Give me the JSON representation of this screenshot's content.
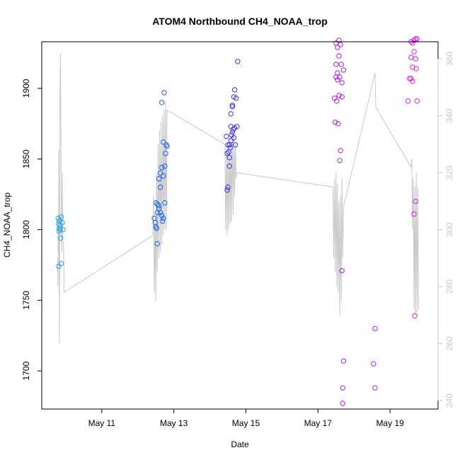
{
  "chart_data": {
    "type": "scatter",
    "title": "ATOM4 Northbound CH4_NOAA_trop",
    "xlabel": "Date",
    "ylabel": "CH4_NOAA_trop",
    "xlim": [
      "2018-05-09T08:00",
      "2018-05-20T08:00"
    ],
    "ylim": [
      1673,
      1933
    ],
    "x_ticks": [
      {
        "value": "2018-05-11",
        "label": "May 11"
      },
      {
        "value": "2018-05-13",
        "label": "May 13"
      },
      {
        "value": "2018-05-15",
        "label": "May 15"
      },
      {
        "value": "2018-05-17",
        "label": "May 17"
      },
      {
        "value": "2018-05-19",
        "label": "May 19"
      }
    ],
    "y_ticks": [
      1700,
      1750,
      1800,
      1850,
      1900
    ],
    "y2_ticks": [
      240,
      260,
      280,
      300,
      320,
      340,
      360
    ],
    "y2_lim": [
      237,
      366
    ],
    "grid": false,
    "colors": {
      "flight1": "#29a3e0",
      "flight2": "#1e62f0",
      "flight3": "#3a30e8",
      "flight4": "#b020e0",
      "flight5": "#e020e0",
      "altitude_line": "#c8c8c8",
      "right_axis": "#c8c8c8"
    },
    "series": [
      {
        "color_key": "flight1",
        "points": [
          [
            "2018-05-09T19:00",
            1808
          ],
          [
            "2018-05-09T19:30",
            1806
          ],
          [
            "2018-05-09T19:15",
            1804
          ],
          [
            "2018-05-09T19:40",
            1801
          ],
          [
            "2018-05-09T19:25",
            1799
          ],
          [
            "2018-05-09T20:10",
            1800
          ],
          [
            "2018-05-09T21:00",
            1809
          ],
          [
            "2018-05-09T21:40",
            1805
          ],
          [
            "2018-05-09T22:10",
            1800
          ],
          [
            "2018-05-09T20:30",
            1794
          ],
          [
            "2018-05-09T21:00",
            1776
          ],
          [
            "2018-05-09T19:20",
            1774
          ],
          [
            "2018-05-09T20:00",
            1803
          ]
        ]
      },
      {
        "color_key": "flight2",
        "points": [
          [
            "2018-05-12T12:00",
            1819
          ],
          [
            "2018-05-12T13:00",
            1818
          ],
          [
            "2018-05-12T14:00",
            1817
          ],
          [
            "2018-05-12T11:00",
            1808
          ],
          [
            "2018-05-12T11:30",
            1805
          ],
          [
            "2018-05-12T12:00",
            1802
          ],
          [
            "2018-05-12T12:30",
            1801
          ],
          [
            "2018-05-12T13:00",
            1812
          ],
          [
            "2018-05-12T14:00",
            1815
          ],
          [
            "2018-05-12T15:00",
            1812
          ],
          [
            "2018-05-12T16:00",
            1810
          ],
          [
            "2018-05-12T16:30",
            1806
          ],
          [
            "2018-05-12T17:00",
            1808
          ],
          [
            "2018-05-12T18:00",
            1819
          ],
          [
            "2018-05-12T13:00",
            1790
          ],
          [
            "2018-05-12T14:00",
            1836
          ],
          [
            "2018-05-12T15:00",
            1840
          ],
          [
            "2018-05-12T16:00",
            1844
          ],
          [
            "2018-05-12T17:00",
            1838
          ],
          [
            "2018-05-12T18:00",
            1845
          ],
          [
            "2018-05-12T18:30",
            1854
          ],
          [
            "2018-05-12T17:00",
            1862
          ],
          [
            "2018-05-12T19:00",
            1860
          ],
          [
            "2018-05-12T19:30",
            1859
          ],
          [
            "2018-05-12T16:00",
            1890
          ],
          [
            "2018-05-12T17:30",
            1897
          ],
          [
            "2018-05-12T15:00",
            1830
          ]
        ]
      },
      {
        "color_key": "flight3",
        "points": [
          [
            "2018-05-14T11:00",
            1866
          ],
          [
            "2018-05-14T12:00",
            1860
          ],
          [
            "2018-05-14T12:30",
            1855
          ],
          [
            "2018-05-14T11:30",
            1854
          ],
          [
            "2018-05-14T13:00",
            1851
          ],
          [
            "2018-05-14T13:30",
            1858
          ],
          [
            "2018-05-14T14:00",
            1863
          ],
          [
            "2018-05-14T14:30",
            1867
          ],
          [
            "2018-05-14T15:00",
            1869
          ],
          [
            "2018-05-14T15:30",
            1871
          ],
          [
            "2018-05-14T16:00",
            1865
          ],
          [
            "2018-05-14T16:30",
            1872
          ],
          [
            "2018-05-14T17:00",
            1860
          ],
          [
            "2018-05-14T18:00",
            1873
          ],
          [
            "2018-05-14T14:00",
            1873
          ],
          [
            "2018-05-14T13:00",
            1845
          ],
          [
            "2018-05-14T12:00",
            1830
          ],
          [
            "2018-05-14T11:30",
            1828
          ],
          [
            "2018-05-14T14:00",
            1882
          ],
          [
            "2018-05-14T15:00",
            1888
          ],
          [
            "2018-05-14T16:00",
            1894
          ],
          [
            "2018-05-14T16:30",
            1899
          ],
          [
            "2018-05-14T17:30",
            1893
          ],
          [
            "2018-05-14T18:30",
            1919
          ],
          [
            "2018-05-14T15:00",
            1887
          ],
          [
            "2018-05-14T13:00",
            1860
          ]
        ]
      },
      {
        "color_key": "flight4",
        "points": [
          [
            "2018-05-17T12:00",
            1932
          ],
          [
            "2018-05-17T14:00",
            1934
          ],
          [
            "2018-05-17T15:00",
            1931
          ],
          [
            "2018-05-17T13:00",
            1929
          ],
          [
            "2018-05-17T14:00",
            1923
          ],
          [
            "2018-05-17T12:00",
            1917
          ],
          [
            "2018-05-17T13:00",
            1911
          ],
          [
            "2018-05-17T15:30",
            1917
          ],
          [
            "2018-05-17T17:00",
            1913
          ],
          [
            "2018-05-17T12:00",
            1908
          ],
          [
            "2018-05-17T13:00",
            1906
          ],
          [
            "2018-05-17T14:30",
            1908
          ],
          [
            "2018-05-17T16:00",
            1904
          ],
          [
            "2018-05-17T11:00",
            1893
          ],
          [
            "2018-05-17T12:30",
            1891
          ],
          [
            "2018-05-17T14:00",
            1895
          ],
          [
            "2018-05-17T16:00",
            1894
          ],
          [
            "2018-05-17T11:30",
            1876
          ],
          [
            "2018-05-17T13:30",
            1875
          ],
          [
            "2018-05-17T15:00",
            1856
          ],
          [
            "2018-05-17T14:30",
            1849
          ],
          [
            "2018-05-17T16:00",
            1771
          ],
          [
            "2018-05-17T17:00",
            1707
          ],
          [
            "2018-05-17T16:30",
            1688
          ],
          [
            "2018-05-17T16:30",
            1677
          ],
          [
            "2018-05-18T13:00",
            1705
          ],
          [
            "2018-05-18T14:00",
            1688
          ],
          [
            "2018-05-18T14:00",
            1730
          ]
        ]
      },
      {
        "color_key": "flight5",
        "points": [
          [
            "2018-05-19T14:00",
            1933
          ],
          [
            "2018-05-19T16:00",
            1934
          ],
          [
            "2018-05-19T17:00",
            1935
          ],
          [
            "2018-05-19T18:00",
            1935
          ],
          [
            "2018-05-19T15:00",
            1932
          ],
          [
            "2018-05-19T16:00",
            1926
          ],
          [
            "2018-05-19T14:00",
            1922
          ],
          [
            "2018-05-19T17:00",
            1921
          ],
          [
            "2018-05-19T15:00",
            1915
          ],
          [
            "2018-05-19T17:30",
            1914
          ],
          [
            "2018-05-19T13:00",
            1907
          ],
          [
            "2018-05-19T14:00",
            1907
          ],
          [
            "2018-05-19T15:00",
            1905
          ],
          [
            "2018-05-19T12:00",
            1891
          ],
          [
            "2018-05-19T18:00",
            1891
          ],
          [
            "2018-05-19T17:00",
            1820
          ],
          [
            "2018-05-19T16:00",
            1811
          ],
          [
            "2018-05-19T16:30",
            1739
          ]
        ]
      }
    ],
    "altitude_line": {
      "y_axis": "right",
      "points": [
        [
          "2018-05-09T18:30",
          290
        ],
        [
          "2018-05-09T18:45",
          280
        ],
        [
          "2018-05-09T19:00",
          305
        ],
        [
          "2018-05-09T19:10",
          292
        ],
        [
          "2018-05-09T19:20",
          328
        ],
        [
          "2018-05-09T19:30",
          290
        ],
        [
          "2018-05-09T19:45",
          260
        ],
        [
          "2018-05-09T20:00",
          310
        ],
        [
          "2018-05-09T20:10",
          350
        ],
        [
          "2018-05-09T20:30",
          362
        ],
        [
          "2018-05-09T21:00",
          305
        ],
        [
          "2018-05-09T21:20",
          292
        ],
        [
          "2018-05-09T21:40",
          320
        ],
        [
          "2018-05-09T22:00",
          298
        ],
        [
          "2018-05-09T22:30",
          294
        ],
        [
          "2018-05-09T23:00",
          278
        ],
        [
          "2018-05-12T10:00",
          298
        ],
        [
          "2018-05-12T10:30",
          312
        ],
        [
          "2018-05-12T11:00",
          278
        ],
        [
          "2018-05-12T11:30",
          305
        ],
        [
          "2018-05-12T12:00",
          275
        ],
        [
          "2018-05-12T12:30",
          320
        ],
        [
          "2018-05-12T13:00",
          285
        ],
        [
          "2018-05-12T13:30",
          330
        ],
        [
          "2018-05-12T14:00",
          290
        ],
        [
          "2018-05-12T14:30",
          335
        ],
        [
          "2018-05-12T15:00",
          292
        ],
        [
          "2018-05-12T15:30",
          338
        ],
        [
          "2018-05-12T16:00",
          295
        ],
        [
          "2018-05-12T16:30",
          340
        ],
        [
          "2018-05-12T17:00",
          298
        ],
        [
          "2018-05-12T17:30",
          342
        ],
        [
          "2018-05-12T18:00",
          300
        ],
        [
          "2018-05-12T18:30",
          345
        ],
        [
          "2018-05-12T19:00",
          300
        ],
        [
          "2018-05-12T19:30",
          342
        ],
        [
          "2018-05-14T10:00",
          330
        ],
        [
          "2018-05-14T10:30",
          300
        ],
        [
          "2018-05-14T11:00",
          328
        ],
        [
          "2018-05-14T11:30",
          298
        ],
        [
          "2018-05-14T12:00",
          330
        ],
        [
          "2018-05-14T12:30",
          300
        ],
        [
          "2018-05-14T13:00",
          332
        ],
        [
          "2018-05-14T13:30",
          302
        ],
        [
          "2018-05-14T14:00",
          333
        ],
        [
          "2018-05-14T14:30",
          303
        ],
        [
          "2018-05-14T15:00",
          334
        ],
        [
          "2018-05-14T15:30",
          305
        ],
        [
          "2018-05-14T16:00",
          333
        ],
        [
          "2018-05-14T16:30",
          312
        ],
        [
          "2018-05-14T17:00",
          330
        ],
        [
          "2018-05-14T17:30",
          318
        ],
        [
          "2018-05-14T18:00",
          320
        ],
        [
          "2018-05-17T10:00",
          315
        ],
        [
          "2018-05-17T10:30",
          290
        ],
        [
          "2018-05-17T11:00",
          318
        ],
        [
          "2018-05-17T11:30",
          285
        ],
        [
          "2018-05-17T12:00",
          320
        ],
        [
          "2018-05-17T12:30",
          280
        ],
        [
          "2018-05-17T13:00",
          316
        ],
        [
          "2018-05-17T13:30",
          278
        ],
        [
          "2018-05-17T14:00",
          310
        ],
        [
          "2018-05-17T14:30",
          270
        ],
        [
          "2018-05-17T15:00",
          312
        ],
        [
          "2018-05-17T15:30",
          275
        ],
        [
          "2018-05-17T16:00",
          318
        ],
        [
          "2018-05-17T16:30",
          290
        ],
        [
          "2018-05-17T17:00",
          308
        ],
        [
          "2018-05-18T14:00",
          355
        ],
        [
          "2018-05-18T14:30",
          343
        ],
        [
          "2018-05-19T14:00",
          322
        ],
        [
          "2018-05-19T14:30",
          325
        ],
        [
          "2018-05-19T15:00",
          300
        ],
        [
          "2018-05-19T15:30",
          318
        ],
        [
          "2018-05-19T16:00",
          272
        ],
        [
          "2018-05-19T16:30",
          315
        ],
        [
          "2018-05-19T17:00",
          270
        ],
        [
          "2018-05-19T17:30",
          320
        ],
        [
          "2018-05-19T18:00",
          271
        ],
        [
          "2018-05-19T18:30",
          315
        ],
        [
          "2018-05-19T19:00",
          272
        ]
      ]
    }
  }
}
